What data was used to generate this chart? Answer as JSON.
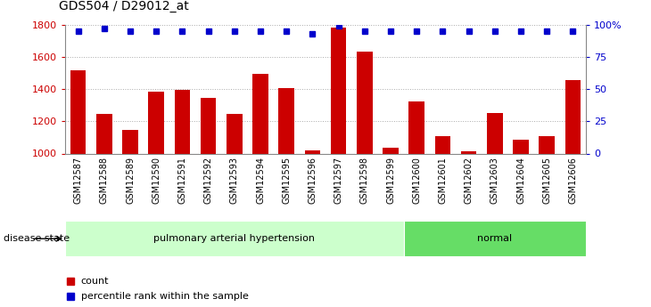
{
  "title": "GDS504 / D29012_at",
  "samples": [
    "GSM12587",
    "GSM12588",
    "GSM12589",
    "GSM12590",
    "GSM12591",
    "GSM12592",
    "GSM12593",
    "GSM12594",
    "GSM12595",
    "GSM12596",
    "GSM12597",
    "GSM12598",
    "GSM12599",
    "GSM12600",
    "GSM12601",
    "GSM12602",
    "GSM12603",
    "GSM12604",
    "GSM12605",
    "GSM12606"
  ],
  "counts": [
    1515,
    1245,
    1148,
    1385,
    1393,
    1345,
    1245,
    1495,
    1405,
    1020,
    1780,
    1630,
    1035,
    1325,
    1108,
    1015,
    1253,
    1085,
    1108,
    1455
  ],
  "percentiles": [
    95,
    97,
    95,
    95,
    95,
    95,
    95,
    95,
    95,
    93,
    99,
    95,
    95,
    95,
    95,
    95,
    95,
    95,
    95,
    95
  ],
  "bar_color": "#cc0000",
  "dot_color": "#0000cc",
  "ylim_left": [
    1000,
    1800
  ],
  "ylim_right": [
    0,
    100
  ],
  "yticks_left": [
    1000,
    1200,
    1400,
    1600,
    1800
  ],
  "yticks_right": [
    0,
    25,
    50,
    75,
    100
  ],
  "yticklabels_right": [
    "0",
    "25",
    "50",
    "75",
    "100%"
  ],
  "groups": [
    {
      "label": "pulmonary arterial hypertension",
      "start": 0,
      "end": 13,
      "color": "#ccffcc"
    },
    {
      "label": "normal",
      "start": 13,
      "end": 20,
      "color": "#66dd66"
    }
  ],
  "group_label_prefix": "disease state",
  "legend_count_label": "count",
  "legend_percentile_label": "percentile rank within the sample",
  "bar_width": 0.6,
  "grid_color": "#aaaaaa",
  "background_color": "#ffffff",
  "xtick_bg_color": "#cccccc"
}
